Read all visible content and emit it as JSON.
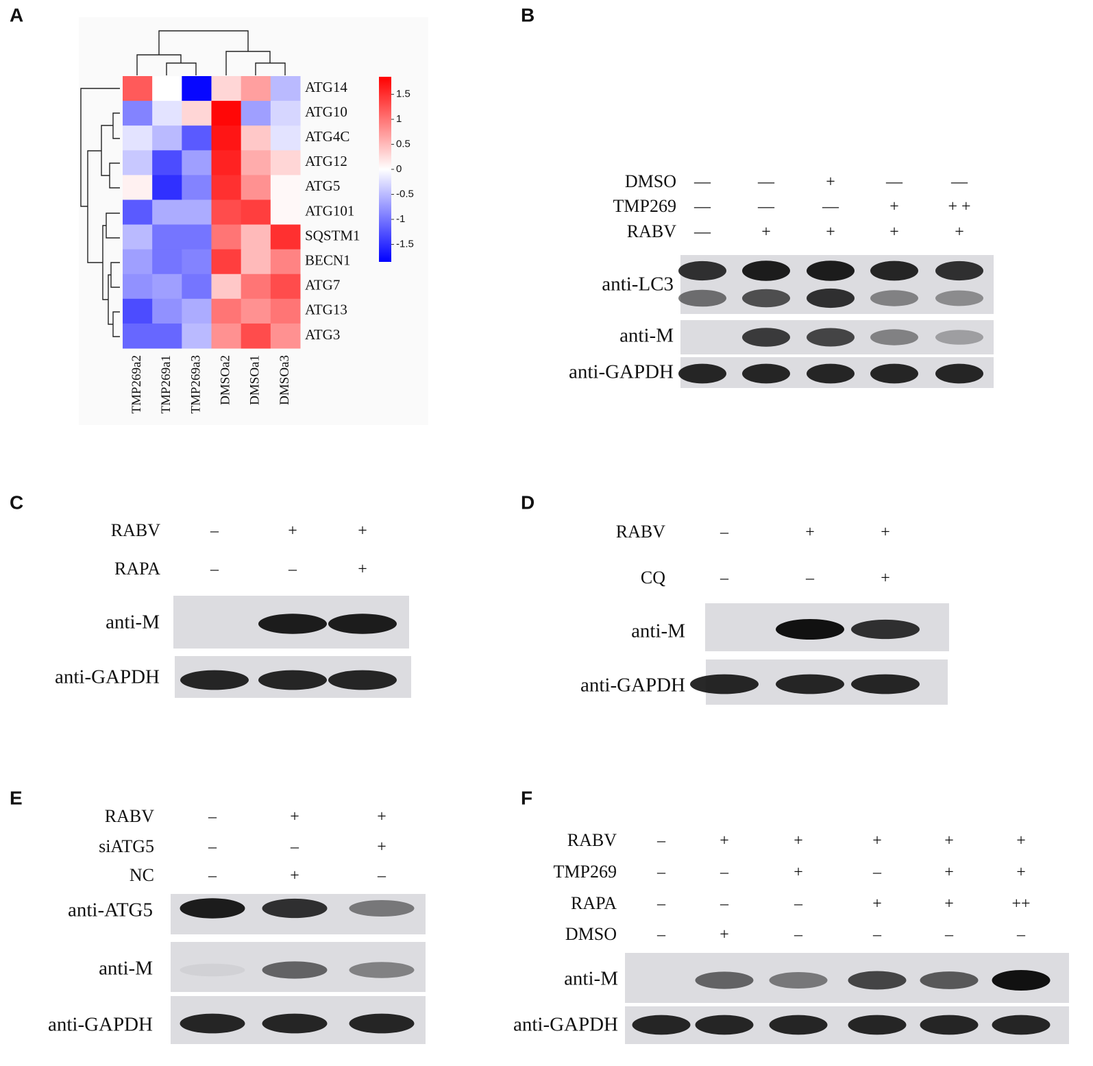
{
  "panels": [
    {
      "label": "A",
      "rows": [
        "ATG14",
        "ATG10",
        "ATG4C",
        "ATG12",
        "ATG5",
        "ATG101",
        "SQSTM1",
        "BECN1",
        "ATG7",
        "ATG13",
        "ATG3"
      ],
      "columns": [
        "TMP269a2",
        "TMP269a1",
        "TMP269a3",
        "DMSOa2",
        "DMSOa1",
        "DMSOa3"
      ],
      "values": [
        [
          1.2,
          0,
          -1.8,
          0.3,
          0.7,
          -0.5
        ],
        [
          -0.9,
          -0.2,
          0.3,
          1.8,
          -0.7,
          -0.3
        ],
        [
          -0.2,
          -0.5,
          -1.2,
          1.7,
          0.4,
          -0.2
        ],
        [
          -0.4,
          -1.3,
          -0.7,
          1.6,
          0.6,
          0.3
        ],
        [
          0.1,
          -1.5,
          -0.9,
          1.5,
          0.8,
          0.05
        ],
        [
          -1.2,
          -0.6,
          -0.6,
          1.3,
          1.4,
          0.05
        ],
        [
          -0.5,
          -1.0,
          -1.0,
          1.0,
          0.5,
          1.5
        ],
        [
          -0.7,
          -1.0,
          -0.9,
          1.4,
          0.5,
          0.9
        ],
        [
          -0.8,
          -0.7,
          -1.0,
          0.4,
          1.0,
          1.3
        ],
        [
          -1.3,
          -0.8,
          -0.6,
          1.0,
          0.8,
          1.0
        ],
        [
          -1.1,
          -1.1,
          -0.5,
          0.8,
          1.3,
          0.8
        ]
      ],
      "colorbar_lim": [
        -1.85,
        1.85
      ],
      "colorbar_ticks": [
        1.5,
        1,
        0.5,
        0,
        -0.5,
        -1,
        -1.5
      ]
    },
    {
      "label": "B",
      "conditions": [
        {
          "name": "DMSO",
          "signs": [
            "—",
            "—",
            "+",
            "—",
            "—"
          ]
        },
        {
          "name": "TMP269",
          "signs": [
            "—",
            "—",
            "—",
            "+",
            "+ +"
          ]
        },
        {
          "name": "RABV",
          "signs": [
            "—",
            "+",
            "+",
            "+",
            "+"
          ]
        }
      ],
      "blots": [
        "anti-LC3",
        "anti-M",
        "anti-GAPDH"
      ]
    },
    {
      "label": "C",
      "conditions": [
        {
          "name": "RABV",
          "signs": [
            "–",
            "+",
            "+"
          ]
        },
        {
          "name": "RAPA",
          "signs": [
            "–",
            "–",
            "+"
          ]
        }
      ],
      "blots": [
        "anti-M",
        "anti-GAPDH"
      ]
    },
    {
      "label": "D",
      "conditions": [
        {
          "name": "RABV",
          "signs": [
            "–",
            "+",
            "+"
          ]
        },
        {
          "name": "CQ",
          "signs": [
            "–",
            "–",
            "+"
          ]
        }
      ],
      "blots": [
        "anti-M",
        "anti-GAPDH"
      ]
    },
    {
      "label": "E",
      "conditions": [
        {
          "name": "RABV",
          "signs": [
            "–",
            "+",
            "+"
          ]
        },
        {
          "name": "siATG5",
          "signs": [
            "–",
            "–",
            "+"
          ]
        },
        {
          "name": "NC",
          "signs": [
            "–",
            "+",
            "–"
          ]
        }
      ],
      "blots": [
        "anti-ATG5",
        "anti-M",
        "anti-GAPDH"
      ]
    },
    {
      "label": "F",
      "conditions": [
        {
          "name": "RABV",
          "signs": [
            "–",
            "+",
            "+",
            "+",
            "+",
            "+"
          ]
        },
        {
          "name": "TMP269",
          "signs": [
            "–",
            "–",
            "+",
            "–",
            "+",
            "+"
          ]
        },
        {
          "name": "RAPA",
          "signs": [
            "–",
            "–",
            "–",
            "+",
            "+",
            "++"
          ]
        },
        {
          "name": "DMSO",
          "signs": [
            "–",
            "+",
            "–",
            "–",
            "–",
            "–"
          ]
        }
      ],
      "blots": [
        "anti-M",
        "anti-GAPDH"
      ]
    }
  ]
}
